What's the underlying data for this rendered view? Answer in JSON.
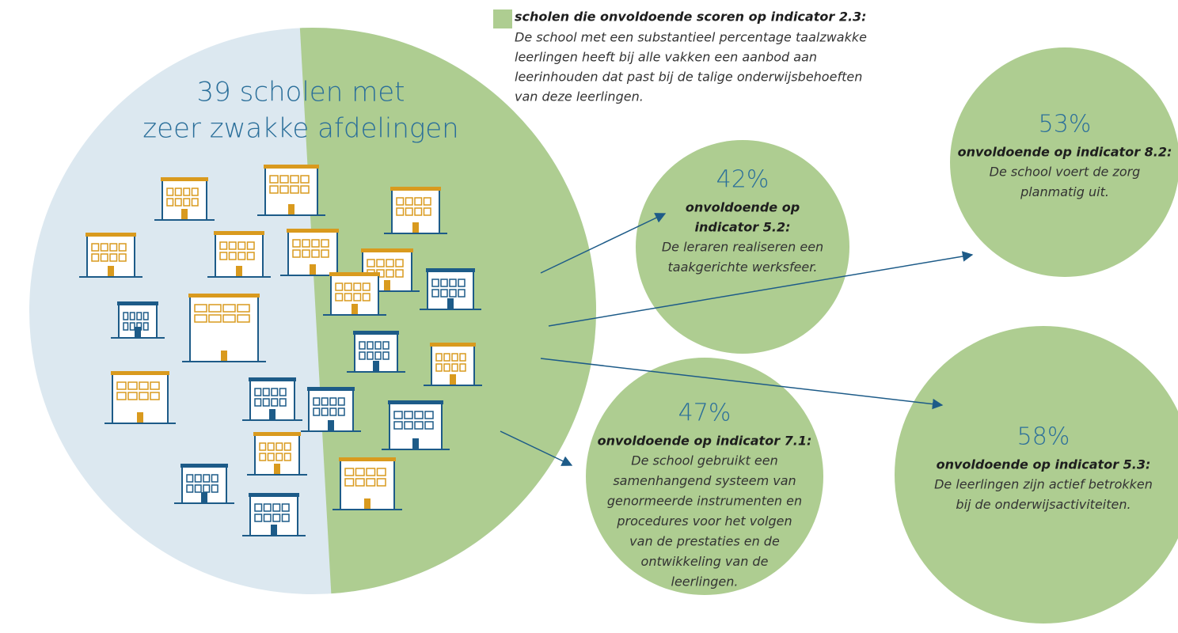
{
  "legend": {
    "title": "scholen die onvoldoende scoren op indicator 2.3:",
    "text": [
      "De school met een substantieel percentage taalzwakke",
      "leerlingen heeft bij alle vakken een aanbod aan",
      "leerinhouden dat past bij de talige onderwijsbehoeften",
      "van deze leerlingen."
    ]
  },
  "title": [
    "39 scholen met",
    "zeer zwakke afdelingen"
  ],
  "bubbles": [
    {
      "value": "42%",
      "heading": [
        "onvoldoende op",
        "indicator 5.2:"
      ],
      "text": [
        "De leraren realiseren een",
        "taakgerichte werksfeer."
      ]
    },
    {
      "value": "53%",
      "heading": [
        "onvoldoende op indicator 8.2:"
      ],
      "text": [
        "De school voert de zorg",
        "planmatig uit."
      ]
    },
    {
      "value": "47%",
      "heading": [
        "onvoldoende op indicator 7.1:"
      ],
      "text": [
        "De school gebruikt een",
        "samenhangend systeem van",
        "genormeerde instrumenten en",
        "procedures voor het volgen",
        "van de prestaties en de",
        "ontwikkeling van de",
        "leerlingen."
      ]
    },
    {
      "value": "58%",
      "heading": [
        "onvoldoende op indicator 5.3:"
      ],
      "text": [
        "De leerlingen zijn actief betrokken",
        "bij de onderwijsactiviteiten."
      ]
    }
  ]
}
